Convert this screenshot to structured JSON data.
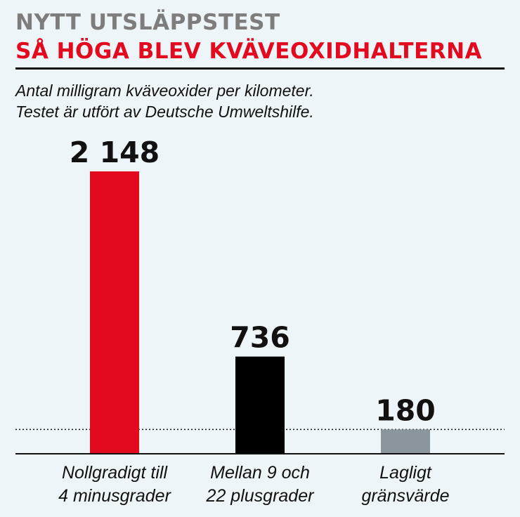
{
  "header": {
    "kicker": "NYTT UTSLÄPPSTEST",
    "headline": "SÅ HÖGA BLEV KVÄVEOXIDHALTERNA",
    "subtitle_line1": "Antal milligram kväveoxider per kilometer.",
    "subtitle_line2": "Testet är utfört av Deutsche Umweltshilfe."
  },
  "chart_data": {
    "type": "bar",
    "categories": [
      [
        "Nollgradigt till",
        "4 minusgrader"
      ],
      [
        "Mellan 9 och",
        "22 plusgrader"
      ],
      [
        "Lagligt",
        "gränsvärde"
      ]
    ],
    "values": [
      2148,
      736,
      180
    ],
    "value_labels": [
      "2 148",
      "736",
      "180"
    ],
    "bar_colors": [
      "#e30a1f",
      "#000000",
      "#8a959c"
    ],
    "reference_line": 180,
    "ylim": [
      0,
      2148
    ]
  }
}
